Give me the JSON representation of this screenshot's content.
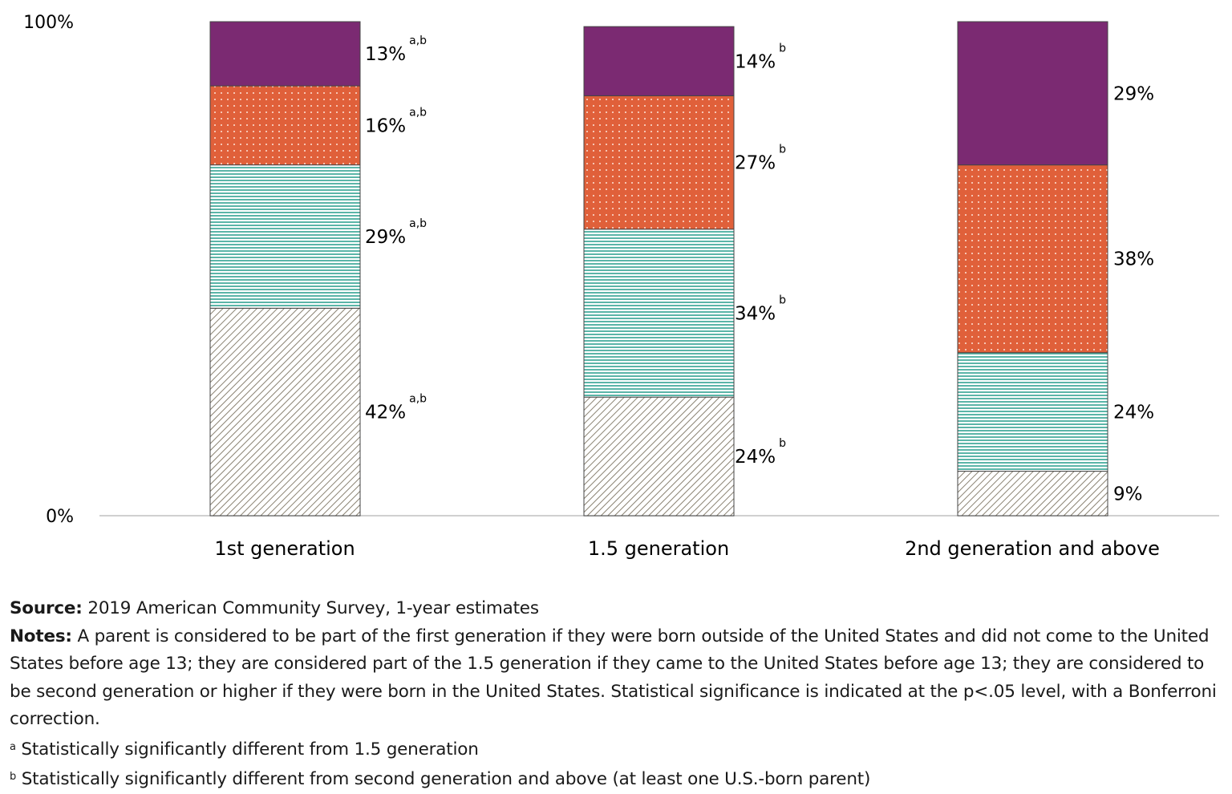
{
  "chart_data": {
    "type": "bar",
    "stacked": true,
    "categories": [
      "1st generation",
      "1.5 generation",
      "2nd generation and above"
    ],
    "ylim": [
      0,
      100
    ],
    "yticks": [
      "0%",
      "100%"
    ],
    "grid": false,
    "series": [
      {
        "values": [
          42,
          24,
          9
        ],
        "color": "#8a8272",
        "pattern": "diagonal-hatch",
        "superscripts": [
          "a,b",
          "b",
          ""
        ]
      },
      {
        "values": [
          29,
          34,
          24
        ],
        "color": "#5bb5a8",
        "pattern": "horizontal-lines",
        "superscripts": [
          "a,b",
          "b",
          ""
        ]
      },
      {
        "values": [
          16,
          27,
          38
        ],
        "color": "#e0603a",
        "pattern": "dots",
        "superscripts": [
          "a,b",
          "b",
          ""
        ]
      },
      {
        "values": [
          13,
          14,
          29
        ],
        "color": "#7b2a72",
        "pattern": "solid",
        "superscripts": [
          "a,b",
          "b",
          ""
        ]
      }
    ]
  },
  "notes": {
    "source_label": "Source:",
    "source_text": " 2019 American Community Survey, 1-year estimates",
    "notes_label": "Notes:",
    "notes_text": " A parent is considered to be part of the first generation if they were born outside of the United States and did not come to the United States before age 13; they are considered part of the 1.5 generation if they came to the United States before age 13; they are considered to be second generation or higher if they were born in the United States. Statistical significance is indicated at the p<.05 level, with a Bonferroni correction.",
    "footnote_a_mark": "a",
    "footnote_a": " Statistically significantly different from 1.5 generation",
    "footnote_b_mark": "b",
    "footnote_b": " Statistically significantly different from second generation and above (at least one U.S.-born parent)"
  }
}
